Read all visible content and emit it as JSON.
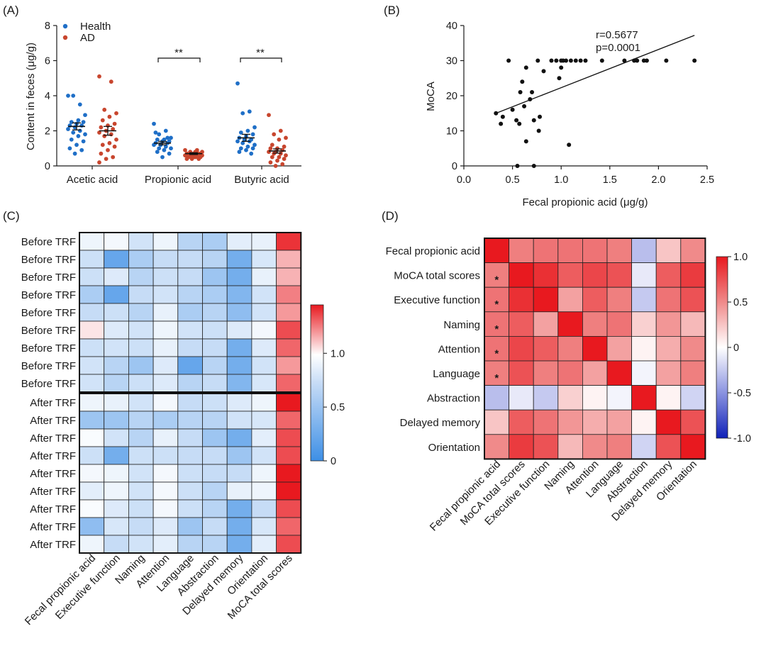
{
  "colors": {
    "health": "#1f6fc7",
    "ad": "#c8462e",
    "heat_low": "#3d8fe6",
    "heat_high": "#e8191f",
    "neg": "#1021b8"
  },
  "panels": {
    "a": "(A)",
    "b": "(B)",
    "c": "(C)",
    "d": "(D)"
  },
  "chart_data": [
    {
      "id": "A",
      "type": "scatter",
      "title": "",
      "ylabel": "Content in feces (μg/g)",
      "ylim": [
        0,
        8
      ],
      "yticks": [
        "0",
        "2",
        "4",
        "6",
        "8"
      ],
      "categories": [
        "Acetic acid",
        "Propionic acid",
        "Butyric acid"
      ],
      "legend": {
        "position": "top-left",
        "entries": [
          "Health",
          "AD"
        ]
      },
      "significance": [
        "",
        "**",
        "**"
      ],
      "series": [
        {
          "name": "Health",
          "mean": [
            2.25,
            1.3,
            1.6
          ],
          "sem": [
            0.2,
            0.1,
            0.2
          ],
          "values": [
            [
              4.0,
              3.5,
              4.0,
              2.9,
              2.6,
              2.5,
              2.5,
              2.4,
              2.3,
              2.3,
              2.2,
              2.1,
              2.0,
              1.9,
              1.8,
              1.7,
              1.5,
              1.4,
              1.2,
              1.0,
              0.9,
              0.7
            ],
            [
              2.4,
              2.0,
              1.8,
              1.6,
              1.5,
              1.5,
              1.4,
              1.4,
              1.3,
              1.3,
              1.2,
              1.2,
              1.1,
              1.0,
              1.0,
              0.9,
              0.8,
              0.7,
              0.5,
              1.9,
              1.6
            ],
            [
              4.7,
              3.1,
              3.0,
              2.2,
              2.0,
              1.9,
              1.8,
              1.7,
              1.6,
              1.5,
              1.5,
              1.4,
              1.4,
              1.3,
              1.2,
              1.1,
              1.0,
              1.0,
              0.9,
              0.8,
              0.7
            ]
          ]
        },
        {
          "name": "AD",
          "mean": [
            2.0,
            0.7,
            0.85
          ],
          "sem": [
            0.25,
            0.05,
            0.12
          ],
          "values": [
            [
              5.1,
              4.8,
              3.2,
              3.0,
              2.8,
              2.6,
              2.4,
              2.3,
              2.2,
              2.1,
              2.0,
              1.9,
              1.8,
              1.7,
              1.5,
              1.3,
              1.2,
              1.1,
              0.9,
              0.7,
              0.5,
              0.4,
              0.2
            ],
            [
              0.9,
              0.9,
              0.8,
              0.8,
              0.8,
              0.7,
              0.7,
              0.7,
              0.7,
              0.7,
              0.6,
              0.6,
              0.6,
              0.6,
              0.6,
              0.5,
              0.5,
              0.5,
              0.5,
              0.4,
              0.4,
              0.4
            ],
            [
              2.9,
              2.0,
              1.8,
              1.6,
              1.5,
              1.2,
              1.1,
              1.0,
              1.0,
              0.9,
              0.8,
              0.8,
              0.7,
              0.7,
              0.6,
              0.5,
              0.5,
              0.4,
              0.3,
              0.2,
              0.1,
              0.0
            ]
          ]
        }
      ]
    },
    {
      "id": "B",
      "type": "scatter",
      "xlabel": "Fecal propionic acid (μg/g)",
      "ylabel": "MoCA",
      "xlim": [
        0,
        2.5
      ],
      "ylim": [
        0,
        40
      ],
      "xticks": [
        "0.0",
        "0.5",
        "1.0",
        "1.5",
        "2.0",
        "2.5"
      ],
      "yticks": [
        "0",
        "10",
        "20",
        "30",
        "40"
      ],
      "annotations": [
        "r=0.5677",
        "p=0.0001"
      ],
      "fit": {
        "x": [
          0.33,
          2.37
        ],
        "y": [
          15.0,
          37.2
        ]
      },
      "points": [
        [
          0.33,
          15
        ],
        [
          0.38,
          12
        ],
        [
          0.4,
          14
        ],
        [
          0.46,
          30
        ],
        [
          0.5,
          16
        ],
        [
          0.54,
          13
        ],
        [
          0.55,
          0
        ],
        [
          0.57,
          12
        ],
        [
          0.58,
          21
        ],
        [
          0.6,
          24
        ],
        [
          0.62,
          17
        ],
        [
          0.64,
          28
        ],
        [
          0.64,
          7
        ],
        [
          0.68,
          19
        ],
        [
          0.7,
          21
        ],
        [
          0.72,
          13
        ],
        [
          0.72,
          0
        ],
        [
          0.76,
          30
        ],
        [
          0.77,
          10
        ],
        [
          0.78,
          14
        ],
        [
          0.82,
          27
        ],
        [
          0.9,
          30
        ],
        [
          0.95,
          30
        ],
        [
          0.98,
          25
        ],
        [
          1.0,
          30
        ],
        [
          1.0,
          28
        ],
        [
          1.02,
          30
        ],
        [
          1.05,
          30
        ],
        [
          1.08,
          6
        ],
        [
          1.1,
          30
        ],
        [
          1.15,
          30
        ],
        [
          1.2,
          30
        ],
        [
          1.25,
          30
        ],
        [
          1.42,
          30
        ],
        [
          1.65,
          30
        ],
        [
          1.75,
          30
        ],
        [
          1.78,
          30
        ],
        [
          1.85,
          30
        ],
        [
          1.88,
          30
        ],
        [
          2.08,
          30
        ],
        [
          2.37,
          30
        ]
      ]
    },
    {
      "id": "C",
      "type": "heatmap",
      "columns": [
        "Fecal propionic acid",
        "Executive function",
        "Naming",
        "Attention",
        "Language",
        "Abstraction",
        "Delayed memory",
        "Orientation",
        "MoCA total scores"
      ],
      "row_groups": [
        {
          "labels": [
            "Before TRF",
            "Before TRF",
            "Before TRF",
            "Before TRF",
            "Before TRF",
            "Before TRF",
            "Before TRF",
            "Before TRF",
            "Before TRF"
          ],
          "values": [
            [
              0.85,
              0.9,
              0.6,
              0.85,
              0.45,
              0.4,
              0.75,
              0.8,
              1.4
            ],
            [
              0.55,
              0.15,
              0.4,
              0.5,
              0.5,
              0.45,
              0.2,
              0.65,
              1.15
            ],
            [
              0.55,
              0.7,
              0.45,
              0.55,
              0.5,
              0.35,
              0.2,
              0.8,
              1.15
            ],
            [
              0.4,
              0.15,
              0.5,
              0.6,
              0.45,
              0.4,
              0.25,
              0.6,
              1.25
            ],
            [
              0.5,
              0.55,
              0.45,
              0.8,
              0.4,
              0.45,
              0.3,
              0.6,
              1.2
            ],
            [
              1.05,
              0.7,
              0.6,
              0.85,
              0.6,
              0.55,
              0.7,
              0.9,
              1.35
            ],
            [
              0.55,
              0.6,
              0.55,
              0.8,
              0.5,
              0.5,
              0.2,
              0.7,
              1.3
            ],
            [
              0.6,
              0.45,
              0.35,
              0.7,
              0.15,
              0.45,
              0.2,
              0.6,
              1.2
            ],
            [
              0.6,
              0.45,
              0.55,
              0.7,
              0.45,
              0.5,
              0.25,
              0.65,
              1.3
            ]
          ]
        },
        {
          "labels": [
            "After TRF",
            "After TRF",
            "After TRF",
            "After TRF",
            "After TRF",
            "After TRF",
            "After TRF",
            "After TRF",
            "After TRF"
          ],
          "values": [
            [
              0.85,
              0.8,
              0.6,
              0.9,
              0.5,
              0.55,
              0.7,
              0.85,
              1.45
            ],
            [
              0.35,
              0.35,
              0.45,
              0.4,
              0.45,
              0.45,
              0.6,
              0.65,
              1.3
            ],
            [
              0.95,
              0.6,
              0.45,
              0.8,
              0.5,
              0.35,
              0.2,
              0.75,
              1.35
            ],
            [
              0.55,
              0.2,
              0.55,
              0.55,
              0.5,
              0.5,
              0.35,
              0.6,
              1.35
            ],
            [
              0.9,
              0.85,
              0.6,
              0.9,
              0.55,
              0.5,
              0.5,
              0.85,
              1.45
            ],
            [
              0.75,
              0.85,
              0.6,
              0.9,
              0.55,
              0.45,
              0.8,
              0.85,
              1.45
            ],
            [
              0.95,
              0.7,
              0.55,
              0.9,
              0.55,
              0.45,
              0.2,
              0.5,
              1.35
            ],
            [
              0.3,
              0.65,
              0.5,
              0.7,
              0.35,
              0.5,
              0.2,
              0.65,
              1.3
            ],
            [
              0.85,
              0.5,
              0.6,
              0.75,
              0.45,
              0.45,
              0.2,
              0.75,
              1.35
            ]
          ]
        }
      ],
      "colorbar": {
        "range": [
          0,
          1.45
        ],
        "ticks": [
          "0",
          "0.5",
          "1.0"
        ],
        "tick_values": [
          0,
          0.5,
          1.0
        ]
      }
    },
    {
      "id": "D",
      "type": "heatmap",
      "labels": [
        "Fecal propionic acid",
        "MoCA total scores",
        "Executive function",
        "Naming",
        "Attention",
        "Language",
        "Abstraction",
        "Delayed memory",
        "Orientation"
      ],
      "values": [
        [
          1.0,
          0.55,
          0.6,
          0.6,
          0.6,
          0.55,
          -0.3,
          0.25,
          0.5
        ],
        [
          0.55,
          1.0,
          0.9,
          0.7,
          0.8,
          0.75,
          -0.1,
          0.7,
          0.85
        ],
        [
          0.6,
          0.9,
          1.0,
          0.4,
          0.7,
          0.55,
          -0.25,
          0.6,
          0.75
        ],
        [
          0.6,
          0.7,
          0.4,
          1.0,
          0.55,
          0.6,
          0.2,
          0.45,
          0.3
        ],
        [
          0.6,
          0.8,
          0.7,
          0.55,
          1.0,
          0.4,
          0.05,
          0.35,
          0.5
        ],
        [
          0.55,
          0.75,
          0.55,
          0.6,
          0.4,
          1.0,
          -0.05,
          0.4,
          0.55
        ],
        [
          -0.3,
          -0.1,
          -0.25,
          0.2,
          0.05,
          -0.05,
          1.0,
          0.05,
          -0.2
        ],
        [
          0.25,
          0.7,
          0.6,
          0.45,
          0.35,
          0.4,
          0.05,
          1.0,
          0.75
        ],
        [
          0.5,
          0.85,
          0.75,
          0.3,
          0.5,
          0.55,
          -0.2,
          0.75,
          1.0
        ]
      ],
      "stars": [
        [
          1,
          0,
          "*"
        ],
        [
          2,
          0,
          "*"
        ],
        [
          3,
          0,
          "*"
        ],
        [
          4,
          0,
          "*"
        ],
        [
          5,
          0,
          "*"
        ]
      ],
      "colorbar": {
        "range": [
          -1,
          1
        ],
        "ticks": [
          "1.0",
          "0.5",
          "0",
          "-0.5",
          "-1.0"
        ],
        "tick_values": [
          1,
          0.5,
          0,
          -0.5,
          -1
        ]
      }
    }
  ]
}
